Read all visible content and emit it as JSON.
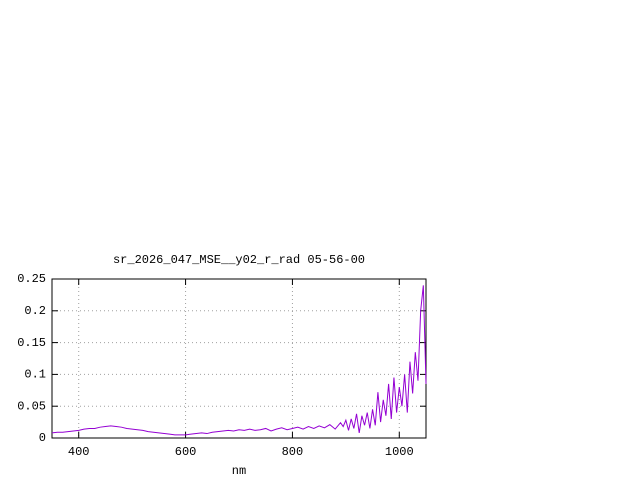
{
  "chart_data": {
    "type": "line",
    "title": "sr_2026_047_MSE__y02_r_rad 05-56-00",
    "x_label": "nm",
    "x": [
      350,
      360,
      370,
      380,
      390,
      400,
      410,
      420,
      430,
      440,
      450,
      460,
      470,
      480,
      490,
      500,
      510,
      520,
      530,
      540,
      550,
      560,
      570,
      580,
      590,
      600,
      610,
      620,
      630,
      640,
      650,
      660,
      670,
      680,
      690,
      700,
      710,
      720,
      730,
      740,
      750,
      760,
      770,
      780,
      790,
      800,
      810,
      820,
      830,
      840,
      850,
      860,
      870,
      880,
      890,
      895,
      900,
      905,
      910,
      915,
      920,
      925,
      930,
      935,
      940,
      945,
      950,
      955,
      960,
      965,
      970,
      975,
      980,
      985,
      990,
      995,
      1000,
      1005,
      1010,
      1015,
      1020,
      1025,
      1030,
      1035,
      1040,
      1045,
      1050
    ],
    "series": [
      {
        "color": "#9400d3",
        "values": [
          0.008,
          0.009,
          0.009,
          0.01,
          0.011,
          0.012,
          0.014,
          0.015,
          0.015,
          0.017,
          0.018,
          0.019,
          0.018,
          0.017,
          0.015,
          0.014,
          0.013,
          0.012,
          0.01,
          0.009,
          0.008,
          0.007,
          0.006,
          0.005,
          0.005,
          0.005,
          0.006,
          0.007,
          0.008,
          0.007,
          0.009,
          0.01,
          0.011,
          0.012,
          0.011,
          0.013,
          0.012,
          0.014,
          0.012,
          0.013,
          0.015,
          0.011,
          0.014,
          0.016,
          0.013,
          0.015,
          0.017,
          0.014,
          0.018,
          0.015,
          0.019,
          0.016,
          0.021,
          0.014,
          0.024,
          0.018,
          0.028,
          0.012,
          0.03,
          0.015,
          0.038,
          0.008,
          0.035,
          0.02,
          0.04,
          0.015,
          0.045,
          0.02,
          0.072,
          0.025,
          0.06,
          0.035,
          0.085,
          0.03,
          0.095,
          0.04,
          0.08,
          0.05,
          0.1,
          0.04,
          0.12,
          0.07,
          0.135,
          0.09,
          0.2,
          0.24,
          0.085
        ]
      }
    ],
    "xlim": [
      350,
      1050
    ],
    "xticks": [
      400,
      600,
      800,
      1000
    ],
    "ylim": [
      0,
      0.25
    ],
    "yticks": [
      0,
      0.05,
      0.1,
      0.15,
      0.2,
      0.25
    ],
    "grid": true
  }
}
